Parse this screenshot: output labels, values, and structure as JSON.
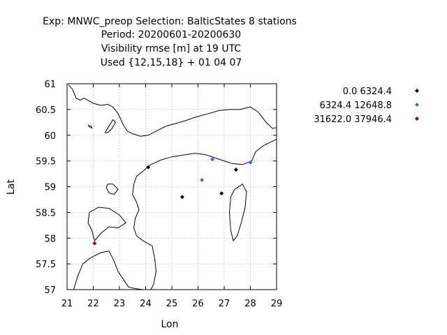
{
  "title_lines": [
    "Exp: MNWC_preop   Selection: BalticStates      8 stations",
    "Period: 20200601-20200630",
    "Visibility rmse [m] at  19 UTC",
    "Used {12,15,18} + 01 04 07"
  ],
  "chart_data": {
    "type": "scatter",
    "xlabel": "Lon",
    "ylabel": "Lat",
    "xlim": [
      21,
      29
    ],
    "ylim": [
      57,
      61
    ],
    "xticks": [
      "21",
      "22",
      "23",
      "24",
      "25",
      "26",
      "27",
      "28",
      "29"
    ],
    "yticks": [
      "57",
      "57.5",
      "58",
      "58.5",
      "59",
      "59.5",
      "60",
      "60.5",
      "61"
    ],
    "grid": true,
    "legend_position": "top-right",
    "series": [
      {
        "name": "0.0 6324.4",
        "color": "#000000",
        "points": [
          {
            "lon": 24.1,
            "lat": 59.38
          },
          {
            "lon": 25.4,
            "lat": 58.8
          },
          {
            "lon": 26.9,
            "lat": 58.87
          },
          {
            "lon": 27.45,
            "lat": 59.33
          }
        ]
      },
      {
        "name": "6324.4 12648.8",
        "color": "#4169e1",
        "points": [
          {
            "lon": 26.55,
            "lat": 59.53
          },
          {
            "lon": 28.0,
            "lat": 59.47
          },
          {
            "lon": 26.15,
            "lat": 59.13
          }
        ]
      },
      {
        "name": "31622.0 37946.4",
        "color": "#8b0000",
        "points": [
          {
            "lon": 22.05,
            "lat": 57.9
          }
        ]
      }
    ],
    "coastlines": [
      [
        [
          21.05,
          60.98
        ],
        [
          21.2,
          60.9
        ],
        [
          21.35,
          60.72
        ],
        [
          21.5,
          60.68
        ],
        [
          21.65,
          60.72
        ],
        [
          21.8,
          60.68
        ],
        [
          22.0,
          60.62
        ],
        [
          22.3,
          60.58
        ],
        [
          22.55,
          60.6
        ],
        [
          22.75,
          60.55
        ],
        [
          22.95,
          60.42
        ],
        [
          23.15,
          60.2
        ],
        [
          23.3,
          60.08
        ],
        [
          23.5,
          60.03
        ],
        [
          23.8,
          59.98
        ],
        [
          24.1,
          60.0
        ],
        [
          24.4,
          60.08
        ],
        [
          24.8,
          60.18
        ],
        [
          25.1,
          60.22
        ],
        [
          25.5,
          60.28
        ],
        [
          25.9,
          60.35
        ],
        [
          26.4,
          60.42
        ],
        [
          26.8,
          60.48
        ],
        [
          27.2,
          60.5
        ],
        [
          27.6,
          60.5
        ],
        [
          28.0,
          60.55
        ],
        [
          28.3,
          60.45
        ],
        [
          28.6,
          60.25
        ],
        [
          28.85,
          60.13
        ],
        [
          29.0,
          60.15
        ]
      ],
      [
        [
          21.8,
          60.2
        ],
        [
          21.88,
          60.15
        ],
        [
          21.95,
          60.14
        ],
        [
          21.92,
          60.18
        ],
        [
          21.85,
          60.18
        ],
        [
          21.8,
          60.2
        ]
      ],
      [
        [
          22.45,
          60.05
        ],
        [
          22.6,
          60.18
        ],
        [
          22.75,
          60.3
        ],
        [
          22.85,
          60.25
        ],
        [
          22.7,
          60.12
        ],
        [
          22.55,
          60.05
        ],
        [
          22.45,
          60.05
        ]
      ],
      [
        [
          29.0,
          59.92
        ],
        [
          28.7,
          59.85
        ],
        [
          28.5,
          59.8
        ],
        [
          28.2,
          59.68
        ],
        [
          28.05,
          59.5
        ],
        [
          27.7,
          59.43
        ],
        [
          27.3,
          59.45
        ],
        [
          27.0,
          59.5
        ],
        [
          26.7,
          59.55
        ],
        [
          26.3,
          59.62
        ],
        [
          25.9,
          59.65
        ],
        [
          25.5,
          59.62
        ],
        [
          25.0,
          59.58
        ],
        [
          24.6,
          59.52
        ],
        [
          24.2,
          59.43
        ],
        [
          23.9,
          59.3
        ],
        [
          23.65,
          59.2
        ],
        [
          23.55,
          59.05
        ],
        [
          23.5,
          58.85
        ],
        [
          23.65,
          58.7
        ],
        [
          23.75,
          58.55
        ],
        [
          23.6,
          58.38
        ],
        [
          23.55,
          58.2
        ],
        [
          23.65,
          58.05
        ],
        [
          23.9,
          57.95
        ],
        [
          24.25,
          57.85
        ],
        [
          24.35,
          57.6
        ],
        [
          24.4,
          57.35
        ],
        [
          24.3,
          57.1
        ],
        [
          24.2,
          57.0
        ]
      ],
      [
        [
          22.55,
          59.05
        ],
        [
          22.75,
          59.05
        ],
        [
          22.95,
          58.95
        ],
        [
          22.8,
          58.85
        ],
        [
          22.6,
          58.88
        ],
        [
          22.5,
          58.98
        ],
        [
          22.55,
          59.05
        ]
      ],
      [
        [
          21.85,
          58.5
        ],
        [
          22.2,
          58.6
        ],
        [
          22.6,
          58.58
        ],
        [
          23.0,
          58.45
        ],
        [
          23.25,
          58.3
        ],
        [
          22.95,
          58.2
        ],
        [
          22.6,
          58.22
        ],
        [
          22.3,
          58.1
        ],
        [
          22.05,
          57.95
        ],
        [
          21.95,
          58.15
        ],
        [
          21.8,
          58.3
        ],
        [
          21.85,
          58.5
        ]
      ],
      [
        [
          27.4,
          58.95
        ],
        [
          27.7,
          59.05
        ],
        [
          27.85,
          58.9
        ],
        [
          27.8,
          58.6
        ],
        [
          27.65,
          58.3
        ],
        [
          27.5,
          58.05
        ],
        [
          27.35,
          57.95
        ],
        [
          27.25,
          58.15
        ],
        [
          27.2,
          58.5
        ],
        [
          27.25,
          58.8
        ],
        [
          27.4,
          58.95
        ]
      ],
      [
        [
          21.25,
          57.0
        ],
        [
          21.4,
          57.25
        ],
        [
          21.6,
          57.5
        ],
        [
          21.9,
          57.62
        ],
        [
          22.3,
          57.72
        ],
        [
          22.6,
          57.75
        ],
        [
          22.8,
          57.55
        ],
        [
          22.95,
          57.35
        ],
        [
          23.15,
          57.2
        ],
        [
          23.35,
          57.05
        ],
        [
          23.6,
          57.02
        ],
        [
          23.9,
          57.0
        ],
        [
          24.1,
          57.0
        ]
      ]
    ]
  }
}
